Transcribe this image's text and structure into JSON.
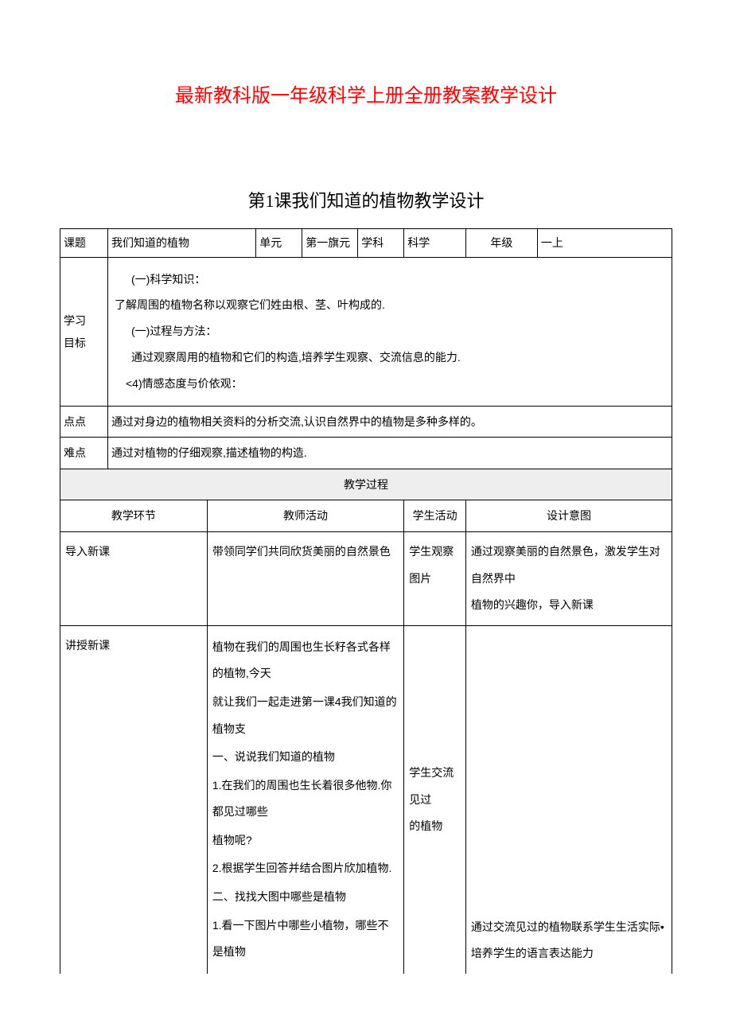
{
  "colors": {
    "title": "#ff0000",
    "text": "#000000",
    "border": "#000000",
    "section_bg": "#eeeeee",
    "page_bg": "#ffffff"
  },
  "typography": {
    "title_fontsize": 24,
    "subtitle_fontsize": 22,
    "body_fontsize": 14,
    "line_height": 1.9
  },
  "main_title": "最新教科版一年级科学上册全册教案教学设计",
  "sub_title": "第1课我们知道的植物教学设计",
  "header": {
    "topic_label": "课题",
    "topic_value": "我们知道的植物",
    "unit_label": "单元",
    "unit_value": "第一旗元",
    "subject_label": "学科",
    "subject_value": "科学",
    "grade_label": "年级",
    "grade_value": "一上"
  },
  "objectives": {
    "label": "学习\n目标",
    "line1": "(一)科学知识：",
    "line2": "了解周围的植物名称以观察它们姓由根、茎、叶构成的.",
    "line3": "(一)过程与方法：",
    "line4": "通过观察周用的植物和它们的构造,培养学生观察、交流信息的能力.",
    "line5": "<4)情感态度与价依观："
  },
  "key_point": {
    "label": "点点",
    "value": "通过对身边的植物相关资料的分析交流,认识自然界中的植物是多种多样的。"
  },
  "difficulty": {
    "label": "难点",
    "value": "通过对植物的仔细观察,描述植物的构造."
  },
  "process_header": "教学过程",
  "columns": {
    "phase": "教学环节",
    "teacher": "教师活动",
    "student": "学生活动",
    "intent": "设计意图"
  },
  "intro": {
    "phase": "导入新课",
    "teacher": "带领同学们共同欣货美丽的自然景色",
    "student": "学生观察图片",
    "intent": "通过观察美丽的自然景色，激发学生对自然界中\n植物的兴趣你，导入新课"
  },
  "teach": {
    "phase": "讲授新课",
    "teacher": {
      "p1": "植物在我们的周围也生长籽各式各样的植物,今天",
      "p2": "就让我们一起走进第一课4我们知道的植物支",
      "p3": "一、说说我们知道的植物",
      "p4": "1.在我们的周围也生长着很多他物.你都见过哪些",
      "p5": "植物呢?",
      "p6": "2.根据学生回答并结合图片欣加植物.",
      "p7": "二、找找大图中哪些是植物",
      "p8": "1.看一下图片中哪些小植物，哪些不是植物"
    },
    "student": "学生交流见过的植物",
    "intent": "通过交流见过的植物联系学生生活实际•培养学生的语言表达能力"
  }
}
